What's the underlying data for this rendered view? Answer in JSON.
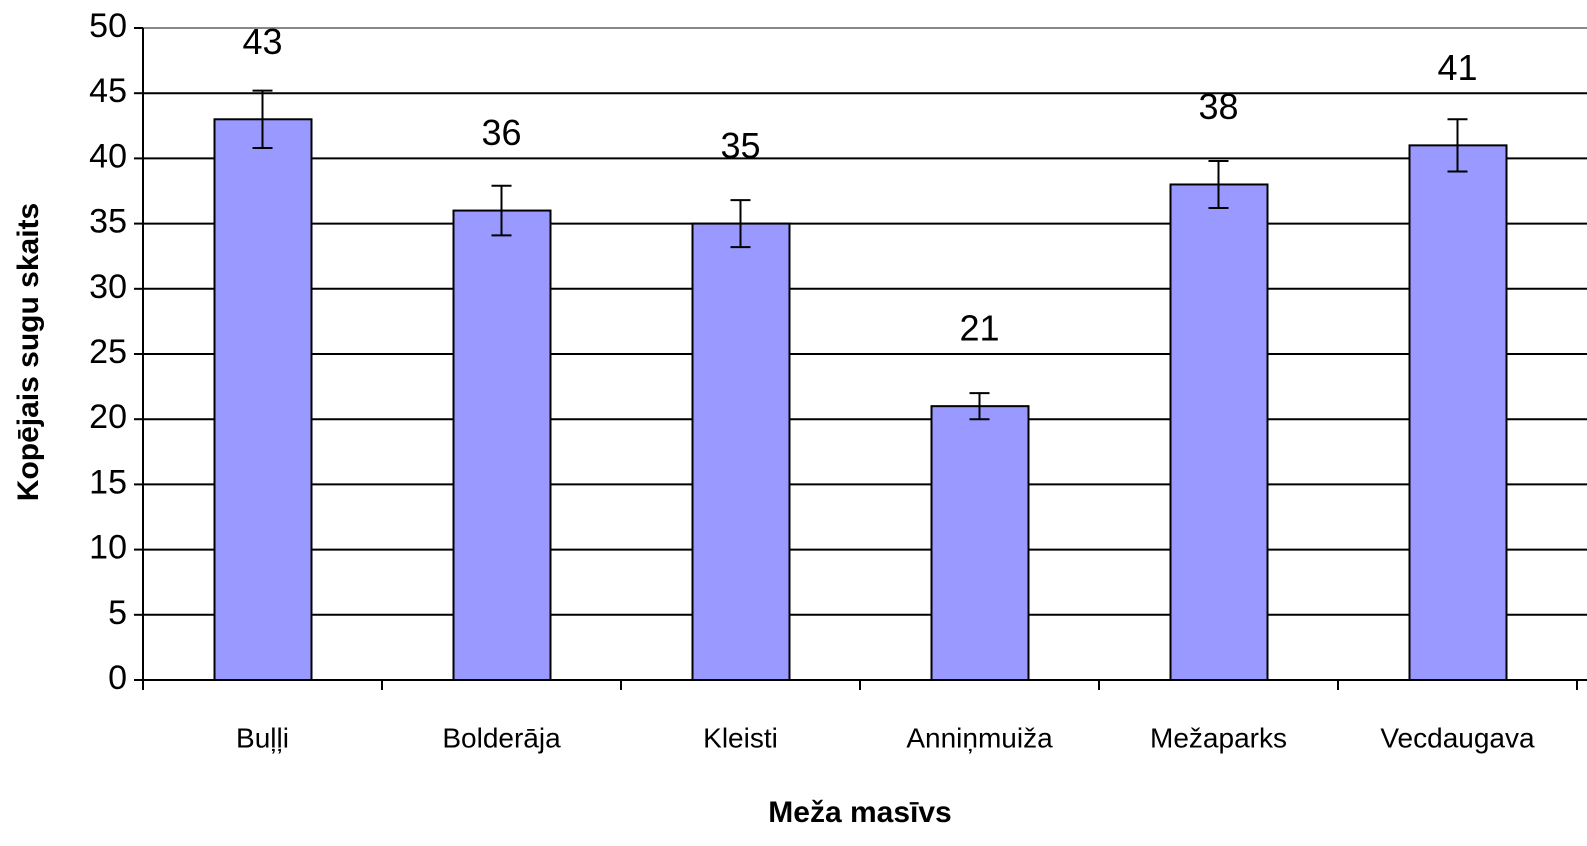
{
  "chart_data": {
    "type": "bar",
    "xlabel": "Meža masīvs",
    "ylabel": "Kopējais sugu skaits",
    "categories": [
      "Buļļi",
      "Bolderāja",
      "Kleisti",
      "Anniņmuiža",
      "Mežaparks",
      "Vecdaugava"
    ],
    "values": [
      43,
      36,
      35,
      21,
      38,
      41
    ],
    "errors": [
      2.2,
      1.9,
      1.8,
      1.0,
      1.8,
      2.0
    ],
    "color": "#9999ff",
    "ylim": [
      0,
      50
    ],
    "yticks": [
      0,
      5,
      10,
      15,
      20,
      25,
      30,
      35,
      40,
      45,
      50
    ],
    "grid": true
  }
}
